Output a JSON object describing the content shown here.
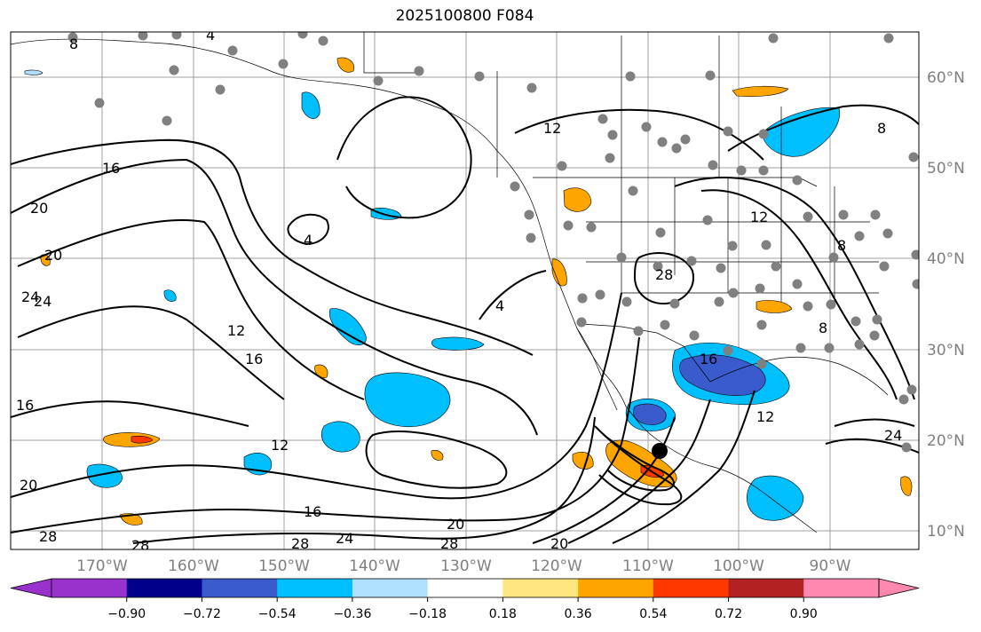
{
  "title": "2025100800 F084",
  "longitude_ticks": [
    "170°W",
    "160°W",
    "150°W",
    "140°W",
    "130°W",
    "120°W",
    "110°W",
    "100°W",
    "90°W"
  ],
  "latitude_ticks": [
    "60°N",
    "50°N",
    "40°N",
    "30°N",
    "20°N",
    "10°N"
  ],
  "colorbar": {
    "levels": [
      "−0.90",
      "−0.72",
      "−0.54",
      "−0.36",
      "−0.18",
      "0.18",
      "0.36",
      "0.54",
      "0.72",
      "0.90"
    ],
    "colors": [
      "#9932cc",
      "#00008b",
      "#3a5bcc",
      "#00bfff",
      "#b0e0ff",
      "#ffffff",
      "#ffe680",
      "#ffa500",
      "#ff3800",
      "#b22222",
      "#ff88b0"
    ]
  },
  "contour_labels": [
    "8",
    "4",
    "12",
    "16",
    "20",
    "24",
    "4",
    "20",
    "24",
    "12",
    "16",
    "12",
    "4",
    "12",
    "28",
    "8",
    "8",
    "24",
    "16",
    "16",
    "28",
    "28",
    "28",
    "24",
    "20",
    "28",
    "20",
    "20",
    "8",
    "12",
    "16"
  ],
  "marker_colors": {
    "station": "#808080",
    "center": "#000000",
    "land_line": "#000000"
  }
}
